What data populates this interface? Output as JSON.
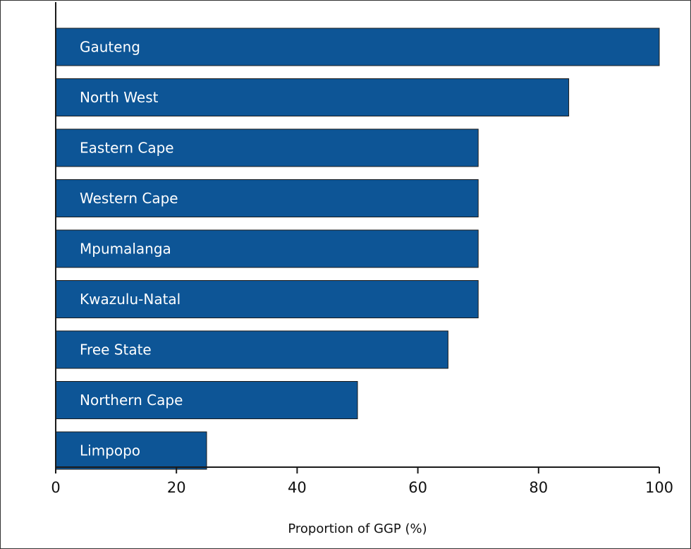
{
  "chart_data": {
    "type": "bar",
    "orientation": "horizontal",
    "categories": [
      "Gauteng",
      "North West",
      "Eastern Cape",
      "Western Cape",
      "Mpumalanga",
      "Kwazulu-Natal",
      "Free State",
      "Northern Cape",
      "Limpopo"
    ],
    "values": [
      100,
      85,
      70,
      70,
      70,
      70,
      65,
      50,
      25
    ],
    "title": "",
    "xlabel": "Proportion of GGP (%)",
    "ylabel": "",
    "xlim": [
      0,
      100
    ],
    "xticks": [
      "0",
      "20",
      "40",
      "60",
      "80",
      "100"
    ],
    "category_labels_inside_bars": true,
    "grid": false,
    "legend": "none",
    "colors": {
      "bar": "#0d5596",
      "bar_edge": "#1a1a1a",
      "axis": "#1a1a1a",
      "text_on_bar": "#ffffff"
    }
  }
}
